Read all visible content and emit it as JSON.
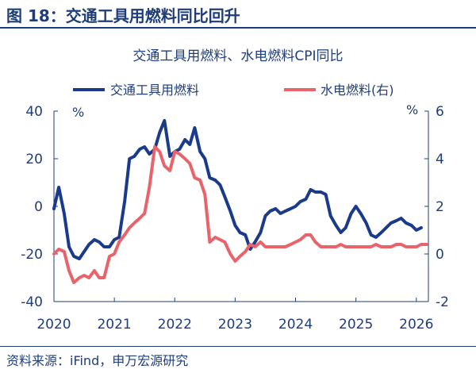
{
  "figure": {
    "title": "图 18：交通工具用燃料同比回升",
    "source": "资料来源：iFind，申万宏源研究"
  },
  "colors": {
    "title": "#1f3d7a",
    "axis": "#1f3d7a",
    "series_transport": "#1a3a8c",
    "series_water": "#e8646a"
  },
  "chart_data": {
    "type": "line",
    "title": "交通工具用燃料、水电燃料CPI同比",
    "legend_position": "top",
    "y_left": {
      "unit_label": "%",
      "range": [
        -40,
        40
      ],
      "ticks": [
        40,
        20,
        0,
        -20,
        -40
      ]
    },
    "y_right": {
      "unit_label": "%",
      "range": [
        -2,
        6
      ],
      "ticks": [
        6,
        4,
        2,
        0,
        -2
      ]
    },
    "x_range": [
      2020,
      2026.2
    ],
    "x_ticks": [
      "2020",
      "2021",
      "2022",
      "2023",
      "2024",
      "2025",
      "2026"
    ],
    "series": [
      {
        "name": "交通工具用燃料",
        "axis": "left",
        "x": [
          2020.0,
          2020.08,
          2020.17,
          2020.25,
          2020.33,
          2020.42,
          2020.5,
          2020.58,
          2020.67,
          2020.75,
          2020.83,
          2020.92,
          2021.0,
          2021.08,
          2021.17,
          2021.25,
          2021.33,
          2021.42,
          2021.5,
          2021.58,
          2021.67,
          2021.75,
          2021.83,
          2021.92,
          2022.0,
          2022.08,
          2022.17,
          2022.25,
          2022.33,
          2022.42,
          2022.5,
          2022.58,
          2022.67,
          2022.75,
          2022.83,
          2022.92,
          2023.0,
          2023.08,
          2023.17,
          2023.25,
          2023.33,
          2023.42,
          2023.5,
          2023.58,
          2023.67,
          2023.75,
          2023.83,
          2023.92,
          2024.0,
          2024.08,
          2024.17,
          2024.25,
          2024.33,
          2024.42,
          2024.5,
          2024.58,
          2024.67,
          2024.75,
          2024.83,
          2024.92,
          2025.0,
          2025.08,
          2025.17,
          2025.25,
          2025.33,
          2025.42,
          2025.5,
          2025.58,
          2025.67,
          2025.75,
          2025.83,
          2025.92,
          2026.0,
          2026.08
        ],
        "values": [
          -1,
          8,
          -3,
          -17,
          -21,
          -22,
          -19,
          -16,
          -14,
          -15,
          -17,
          -17,
          -14,
          -13,
          2,
          20,
          21,
          24,
          25,
          22,
          24,
          31,
          36,
          21,
          23,
          24,
          28,
          26,
          33,
          23,
          20,
          12,
          11,
          9,
          4,
          -2,
          -8,
          -11,
          -12,
          -18,
          -15,
          -11,
          -4,
          -2,
          -1,
          -3,
          -2,
          -1,
          0,
          2,
          3,
          7,
          6,
          6,
          5,
          -4,
          -8,
          -11,
          -9,
          -3,
          0,
          -3,
          -7,
          -12,
          -13,
          -11,
          -9,
          -7,
          -6,
          -5,
          -7,
          -8,
          -10,
          -9
        ],
        "color": "#1a3a8c"
      },
      {
        "name": "水电燃料(右)",
        "axis": "right",
        "x": [
          2020.0,
          2020.08,
          2020.17,
          2020.25,
          2020.33,
          2020.42,
          2020.5,
          2020.58,
          2020.67,
          2020.75,
          2020.83,
          2020.92,
          2021.0,
          2021.08,
          2021.17,
          2021.25,
          2021.33,
          2021.42,
          2021.5,
          2021.58,
          2021.67,
          2021.75,
          2021.83,
          2021.92,
          2022.0,
          2022.08,
          2022.17,
          2022.25,
          2022.33,
          2022.42,
          2022.5,
          2022.58,
          2022.67,
          2022.75,
          2022.83,
          2022.92,
          2023.0,
          2023.08,
          2023.17,
          2023.25,
          2023.33,
          2023.42,
          2023.5,
          2023.58,
          2023.67,
          2023.75,
          2023.83,
          2023.92,
          2024.0,
          2024.08,
          2024.17,
          2024.25,
          2024.33,
          2024.42,
          2024.5,
          2024.58,
          2024.67,
          2024.75,
          2024.83,
          2024.92,
          2025.0,
          2025.08,
          2025.17,
          2025.25,
          2025.33,
          2025.42,
          2025.5,
          2025.58,
          2025.67,
          2025.75,
          2025.83,
          2025.92,
          2026.0,
          2026.08,
          2026.17
        ],
        "values": [
          0,
          0.2,
          0.1,
          -0.7,
          -1.2,
          -1.0,
          -0.9,
          -1.0,
          -0.7,
          -1.0,
          -1.0,
          -0.1,
          0,
          0.5,
          0.8,
          1.1,
          1.3,
          1.5,
          1.7,
          2.8,
          4.5,
          4.3,
          3.7,
          3.5,
          4.3,
          4.2,
          4.0,
          3.8,
          3.2,
          3.1,
          2.5,
          0.5,
          0.7,
          0.6,
          0.5,
          0,
          -0.3,
          -0.1,
          0.1,
          0.4,
          0.3,
          0.5,
          0.3,
          0.3,
          0.3,
          0.3,
          0.3,
          0.4,
          0.5,
          0.6,
          0.8,
          0.8,
          0.5,
          0.3,
          0.3,
          0.3,
          0.3,
          0.4,
          0.3,
          0.3,
          0.3,
          0.3,
          0.3,
          0.3,
          0.4,
          0.3,
          0.3,
          0.3,
          0.4,
          0.4,
          0.3,
          0.3,
          0.3,
          0.4,
          0.4
        ],
        "color": "#e8646a"
      }
    ]
  }
}
